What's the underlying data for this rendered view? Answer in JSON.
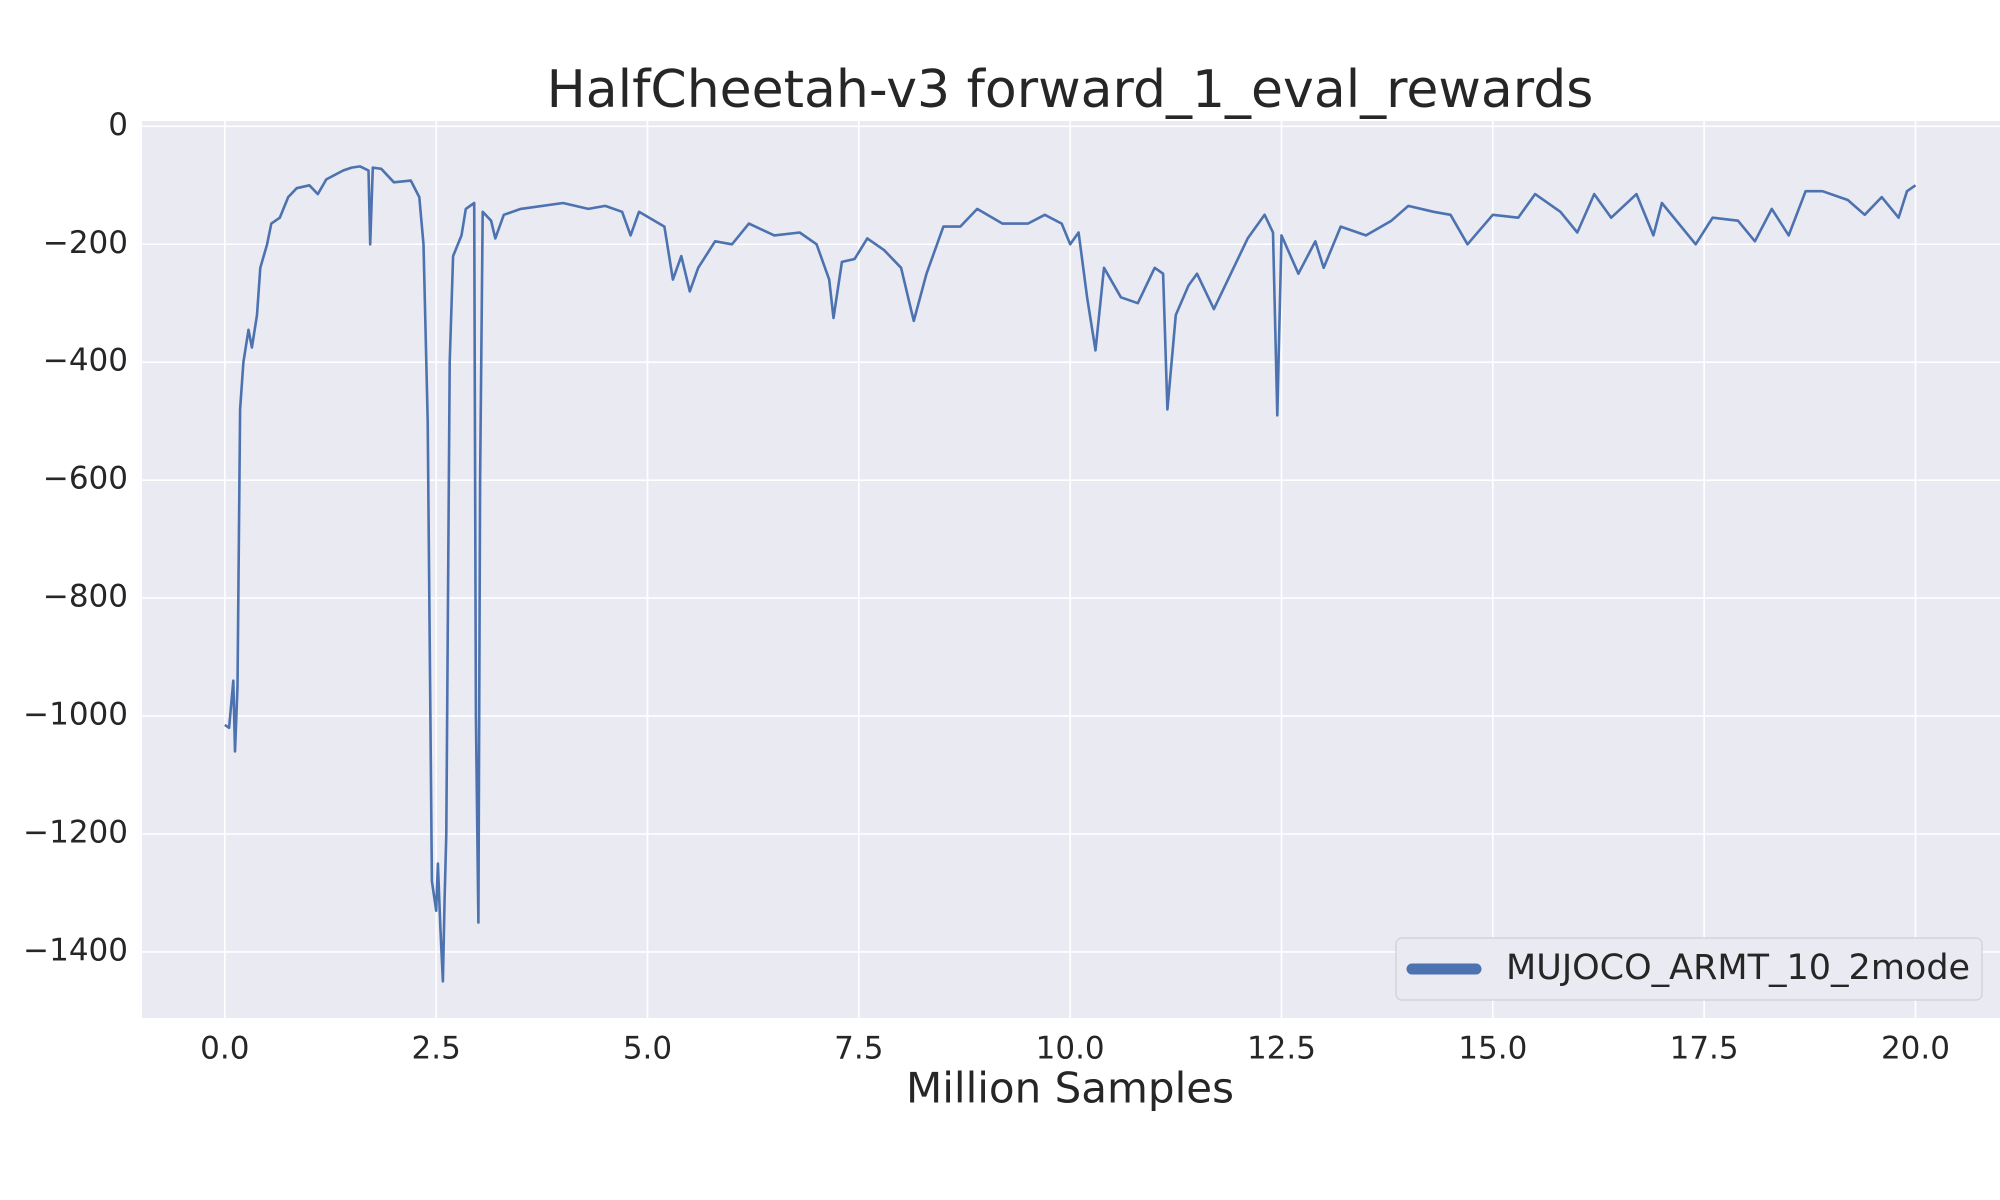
{
  "chart_data": {
    "type": "line",
    "title": "HalfCheetah-v3 forward_1_eval_rewards",
    "x_label": "Million Samples",
    "legend": "lower right",
    "grid": true,
    "xlim": [
      -0.98,
      21.0
    ],
    "ylim": [
      -1512,
      9
    ],
    "xticks": [
      {
        "value": 0,
        "label": "0.0"
      },
      2.5,
      {
        "value": 5,
        "label": "5.0"
      },
      7.5,
      {
        "value": 10,
        "label": "10.0"
      },
      12.5,
      {
        "value": 15,
        "label": "15.0"
      },
      17.5,
      {
        "value": 20,
        "label": "20.0"
      }
    ],
    "yticks": [
      0,
      {
        "value": -200,
        "label": "−200"
      },
      {
        "value": -400,
        "label": "−400"
      },
      {
        "value": -600,
        "label": "−600"
      },
      {
        "value": -800,
        "label": "−800"
      },
      {
        "value": -1000,
        "label": "−1000"
      },
      {
        "value": -1200,
        "label": "−1200"
      },
      {
        "value": -1400,
        "label": "−1400"
      }
    ],
    "x": [
      0.0,
      0.05,
      0.1,
      0.12,
      0.15,
      0.18,
      0.22,
      0.28,
      0.32,
      0.38,
      0.42,
      0.5,
      0.55,
      0.65,
      0.75,
      0.85,
      1.0,
      1.1,
      1.2,
      1.4,
      1.5,
      1.6,
      1.7,
      1.72,
      1.75,
      1.85,
      2.0,
      2.2,
      2.3,
      2.35,
      2.4,
      2.45,
      2.5,
      2.52,
      2.55,
      2.58,
      2.6,
      2.62,
      2.66,
      2.7,
      2.8,
      2.85,
      2.95,
      2.97,
      3.0,
      3.02,
      3.05,
      3.15,
      3.2,
      3.3,
      3.5,
      4.0,
      4.3,
      4.5,
      4.7,
      4.8,
      4.9,
      5.2,
      5.3,
      5.4,
      5.5,
      5.6,
      5.8,
      6.0,
      6.2,
      6.5,
      6.8,
      7.0,
      7.15,
      7.2,
      7.3,
      7.45,
      7.6,
      7.8,
      8.0,
      8.1,
      8.15,
      8.3,
      8.5,
      8.7,
      8.9,
      9.2,
      9.5,
      9.7,
      9.9,
      10.0,
      10.1,
      10.2,
      10.3,
      10.4,
      10.6,
      10.8,
      11.0,
      11.1,
      11.15,
      11.25,
      11.4,
      11.5,
      11.7,
      11.9,
      12.1,
      12.3,
      12.4,
      12.45,
      12.5,
      12.7,
      12.9,
      13.0,
      13.2,
      13.5,
      13.8,
      14.0,
      14.3,
      14.5,
      14.7,
      15.0,
      15.3,
      15.5,
      15.8,
      16.0,
      16.2,
      16.4,
      16.7,
      16.9,
      17.0,
      17.4,
      17.6,
      17.9,
      18.1,
      18.3,
      18.5,
      18.7,
      18.9,
      19.2,
      19.4,
      19.6,
      19.8,
      19.9,
      20.0
    ],
    "series": [
      {
        "name": "MUJOCO_ARMT_10_2mode",
        "color": "#4c72b0",
        "values": [
          -1015,
          -1020,
          -940,
          -1060,
          -950,
          -480,
          -400,
          -345,
          -375,
          -320,
          -240,
          -200,
          -165,
          -155,
          -120,
          -105,
          -100,
          -115,
          -90,
          -75,
          -70,
          -68,
          -75,
          -200,
          -70,
          -72,
          -95,
          -92,
          -120,
          -200,
          -500,
          -1280,
          -1330,
          -1250,
          -1360,
          -1450,
          -1310,
          -1200,
          -400,
          -220,
          -185,
          -140,
          -130,
          -1000,
          -1350,
          -600,
          -145,
          -160,
          -190,
          -150,
          -140,
          -130,
          -140,
          -135,
          -145,
          -185,
          -145,
          -170,
          -260,
          -220,
          -280,
          -240,
          -195,
          -200,
          -165,
          -185,
          -180,
          -200,
          -260,
          -325,
          -230,
          -225,
          -190,
          -210,
          -240,
          -300,
          -330,
          -250,
          -170,
          -170,
          -140,
          -165,
          -165,
          -150,
          -165,
          -200,
          -180,
          -290,
          -380,
          -240,
          -290,
          -300,
          -240,
          -250,
          -480,
          -320,
          -270,
          -250,
          -310,
          -250,
          -190,
          -150,
          -180,
          -490,
          -185,
          -250,
          -195,
          -240,
          -170,
          -185,
          -160,
          -135,
          -145,
          -150,
          -200,
          -150,
          -155,
          -115,
          -145,
          -180,
          -115,
          -155,
          -115,
          -185,
          -130,
          -200,
          -155,
          -160,
          -195,
          -140,
          -185,
          -110,
          -110,
          -125,
          -150,
          -120,
          -155,
          -110,
          -100
        ]
      }
    ]
  }
}
